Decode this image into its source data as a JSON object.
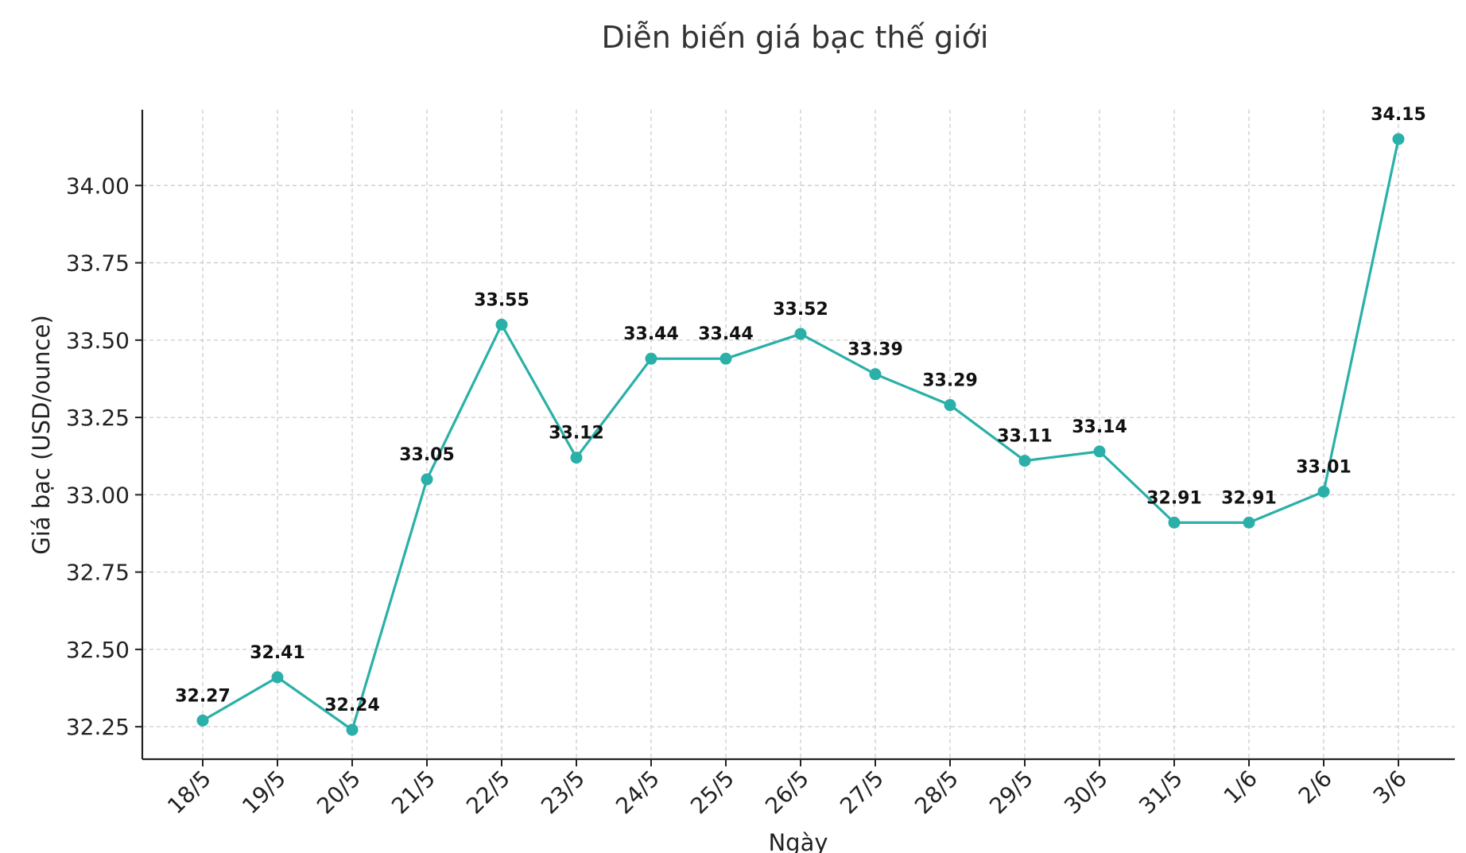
{
  "chart_data": {
    "type": "line",
    "title": "Diễn biến giá bạc thế giới",
    "xlabel": "Ngày",
    "ylabel": "Giá bạc (USD/ounce)",
    "categories": [
      "18/5",
      "19/5",
      "20/5",
      "21/5",
      "22/5",
      "23/5",
      "24/5",
      "25/5",
      "26/5",
      "27/5",
      "28/5",
      "29/5",
      "30/5",
      "31/5",
      "1/6",
      "2/6",
      "3/6"
    ],
    "series": [
      {
        "values": [
          32.27,
          32.41,
          32.24,
          33.05,
          33.55,
          33.12,
          33.44,
          33.44,
          33.52,
          33.39,
          33.29,
          33.11,
          33.14,
          32.91,
          32.91,
          33.01,
          34.15
        ],
        "color": "#2ab0a8"
      }
    ],
    "data_labels": [
      "32.27",
      "32.41",
      "32.24",
      "33.05",
      "33.55",
      "33.12",
      "33.44",
      "33.44",
      "33.52",
      "33.39",
      "33.29",
      "33.11",
      "33.14",
      "32.91",
      "32.91",
      "33.01",
      "34.15"
    ],
    "yticks": [
      32.25,
      32.5,
      32.75,
      33.0,
      33.25,
      33.5,
      33.75,
      34.0
    ],
    "ytick_labels": [
      "32.25",
      "32.50",
      "32.75",
      "33.00",
      "33.25",
      "33.50",
      "33.75",
      "34.00"
    ],
    "ylim": [
      32.145,
      34.245
    ],
    "grid": true,
    "marker": "circle"
  }
}
